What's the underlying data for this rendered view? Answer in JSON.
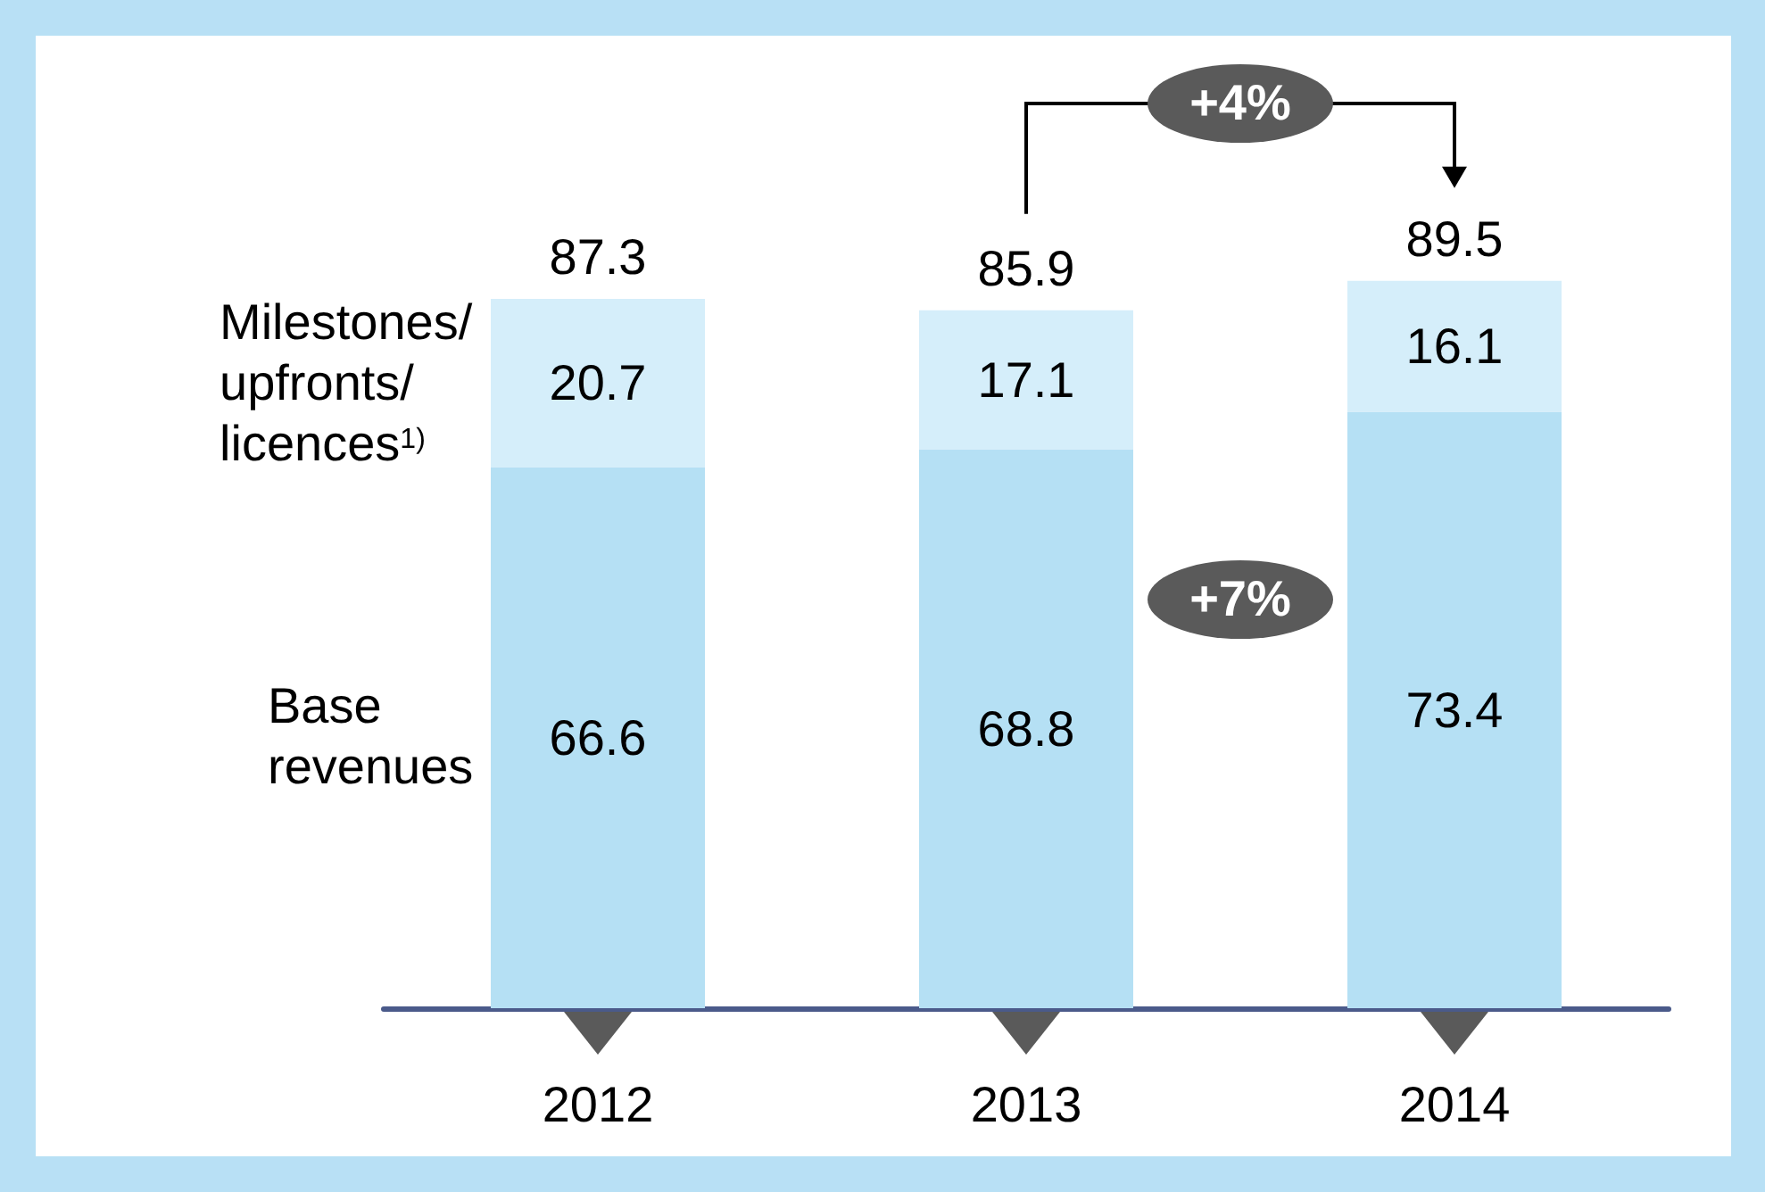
{
  "chart_data": {
    "type": "bar",
    "stacked": true,
    "categories": [
      "2012",
      "2013",
      "2014"
    ],
    "series": [
      {
        "name": "Base\nrevenues",
        "color": "#b5e0f4",
        "values": [
          66.6,
          68.8,
          73.4
        ]
      },
      {
        "name": "Milestones/\nupfronts/\nlicences$^{1)}$",
        "color": "#d5eefa",
        "values": [
          20.7,
          17.1,
          16.1
        ]
      }
    ],
    "data_labels": true,
    "totals": [
      "87.3",
      "85.9",
      "89.5"
    ],
    "annotations": [
      "+4%",
      "+7%"
    ]
  }
}
